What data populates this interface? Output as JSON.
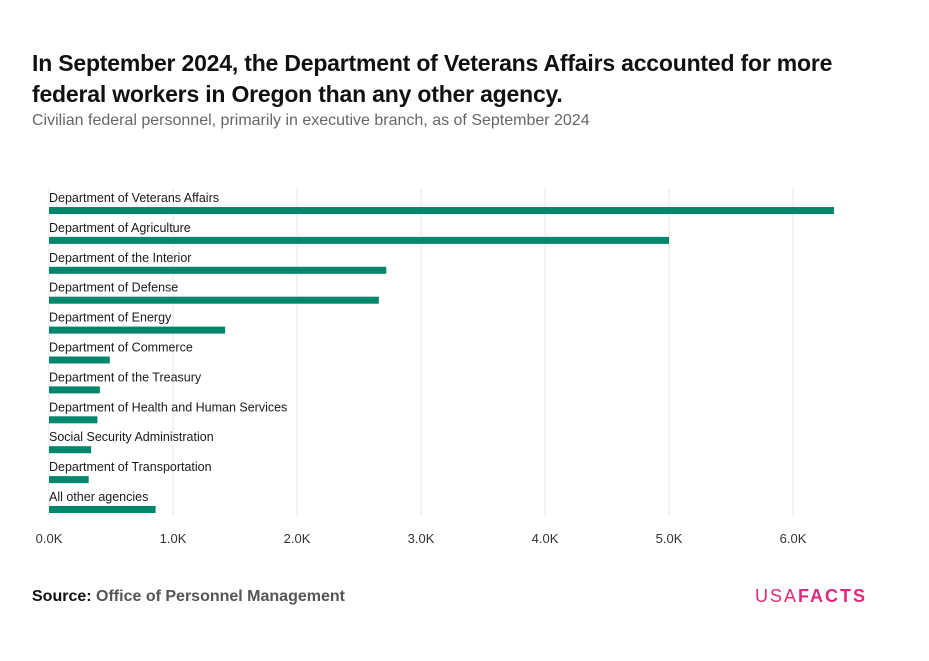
{
  "header": {
    "title": "In September 2024, the Department of Veterans Affairs accounted for more federal workers in Oregon than any other agency.",
    "subtitle": "Civilian federal personnel, primarily in executive branch, as of September 2024"
  },
  "footer": {
    "source_label": "Source:",
    "source_text": "Office of Personnel Management",
    "logo_usa": "USA",
    "logo_facts": "FACTS"
  },
  "colors": {
    "bar": "#00866b",
    "grid": "#e6e6e6",
    "brand": "#e0287d"
  },
  "chart_data": {
    "type": "bar",
    "orientation": "horizontal",
    "title": "In September 2024, the Department of Veterans Affairs accounted for more federal workers in Oregon than any other agency.",
    "subtitle": "Civilian federal personnel, primarily in executive branch, as of September 2024",
    "xlabel": "",
    "ylabel": "",
    "xlim": [
      0,
      6500
    ],
    "xticks": [
      0,
      1000,
      2000,
      3000,
      4000,
      5000,
      6000
    ],
    "xtick_labels": [
      "0.0K",
      "1.0K",
      "2.0K",
      "3.0K",
      "4.0K",
      "5.0K",
      "6.0K"
    ],
    "grid": "vertical",
    "categories": [
      "Department of Veterans Affairs",
      "Department of Agriculture",
      "Department of the Interior",
      "Department of Defense",
      "Department of Energy",
      "Department of Commerce",
      "Department of the Treasury",
      "Department of Health and Human Services",
      "Social Security Administration",
      "Department of Transportation",
      "All other agencies"
    ],
    "values": [
      6330,
      5000,
      2720,
      2660,
      1420,
      490,
      410,
      390,
      340,
      320,
      860
    ]
  }
}
